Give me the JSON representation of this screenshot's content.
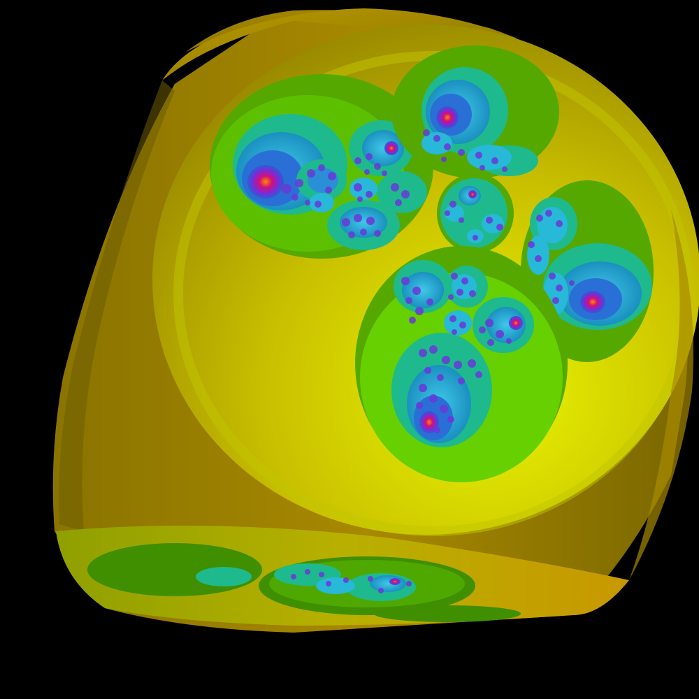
{
  "scene": {
    "background": "#000000",
    "subject": "fractal-apollonian-cube-render",
    "palette": {
      "cube_dark": "#6b5a00",
      "cube_mid": "#b08a00",
      "cube_light": "#d8d000",
      "face_bright": "#e6f000",
      "ring_green": "#5fbf00",
      "ring_green_dark": "#3f8f00",
      "teal": "#19c9a0",
      "cyan": "#28b8d8",
      "blue": "#2a6fd6",
      "purple": "#7a2bd8",
      "magenta": "#c0148a",
      "orange": "#ff8a00"
    }
  }
}
